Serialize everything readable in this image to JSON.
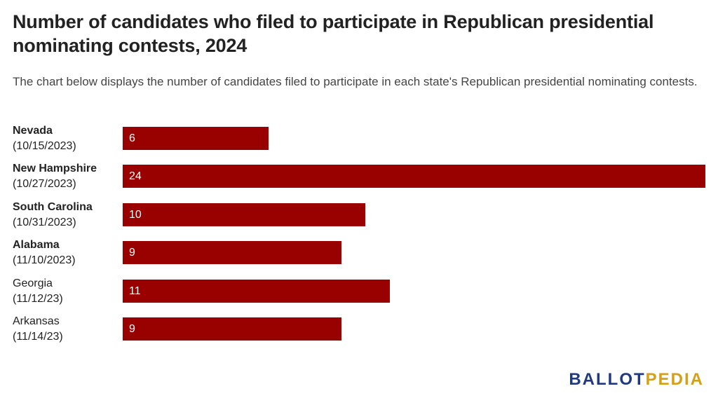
{
  "title": "Number of candidates who filed to participate in Republican presidential nominating contests, 2024",
  "subtitle": "The chart below displays the number of candidates filed to participate in each state's Republican presidential nominating contests.",
  "logo": {
    "ballot": "BALLOT",
    "pedia": "PEDIA"
  },
  "colors": {
    "bar": "#990000",
    "logo_blue": "#1f3a80",
    "logo_gold": "#d4a017"
  },
  "chart_data": {
    "type": "bar",
    "orientation": "horizontal",
    "title": "Number of candidates who filed to participate in Republican presidential nominating contests, 2024",
    "subtitle": "The chart below displays the number of candidates filed to participate in each state's Republican presidential nominating contests.",
    "categories": [
      {
        "name": "Nevada",
        "date": "(10/15/2023)",
        "bold": true
      },
      {
        "name": "New Hampshire",
        "date": "(10/27/2023)",
        "bold": true
      },
      {
        "name": "South Carolina",
        "date": "(10/31/2023)",
        "bold": true
      },
      {
        "name": "Alabama",
        "date": "(11/10/2023)",
        "bold": true
      },
      {
        "name": "Georgia",
        "date": "(11/12/23)",
        "bold": false
      },
      {
        "name": "Arkansas",
        "date": "(11/14/23)",
        "bold": false
      }
    ],
    "values": [
      6,
      24,
      10,
      9,
      11,
      9
    ],
    "xlim": [
      0,
      24
    ],
    "grid": false,
    "legend": "none"
  }
}
